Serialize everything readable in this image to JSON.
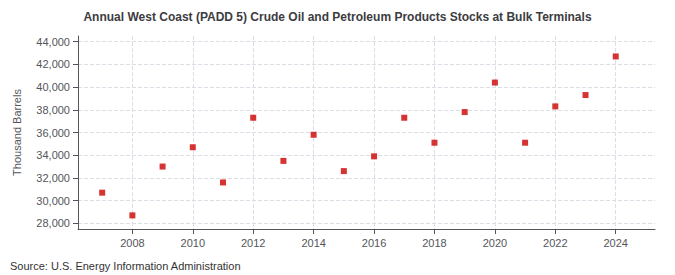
{
  "chart_data": {
    "type": "scatter",
    "title": "Annual West Coast (PADD 5) Crude Oil and Petroleum Products Stocks at Bulk Terminals",
    "ylabel": "Thousand Barrels",
    "annotations": [
      "Source: U.S. Energy Information Administration"
    ],
    "x": [
      2007,
      2008,
      2009,
      2010,
      2011,
      2012,
      2013,
      2014,
      2015,
      2016,
      2017,
      2018,
      2019,
      2020,
      2021,
      2022,
      2023,
      2024
    ],
    "values": [
      30700,
      28700,
      33000,
      34700,
      31600,
      37300,
      33500,
      35800,
      32600,
      33900,
      37300,
      35100,
      37800,
      40400,
      35100,
      38300,
      39300,
      42700
    ],
    "color": "#cc0000",
    "marker": "square",
    "xlim": [
      2006.2,
      2025.3
    ],
    "xticks": [
      2008,
      2010,
      2012,
      2014,
      2016,
      2018,
      2020,
      2022,
      2024
    ],
    "ylim": [
      27500,
      44500
    ],
    "yticks": [
      {
        "value": 28000,
        "label": "28,000"
      },
      {
        "value": 30000,
        "label": "30,000"
      },
      {
        "value": 32000,
        "label": "32,000"
      },
      {
        "value": 34000,
        "label": "34,000"
      },
      {
        "value": 36000,
        "label": "36,000"
      },
      {
        "value": 38000,
        "label": "38,000"
      },
      {
        "value": 40000,
        "label": "40,000"
      },
      {
        "value": 42000,
        "label": "42,000"
      },
      {
        "value": 44000,
        "label": "44,000"
      }
    ],
    "grid": true
  }
}
